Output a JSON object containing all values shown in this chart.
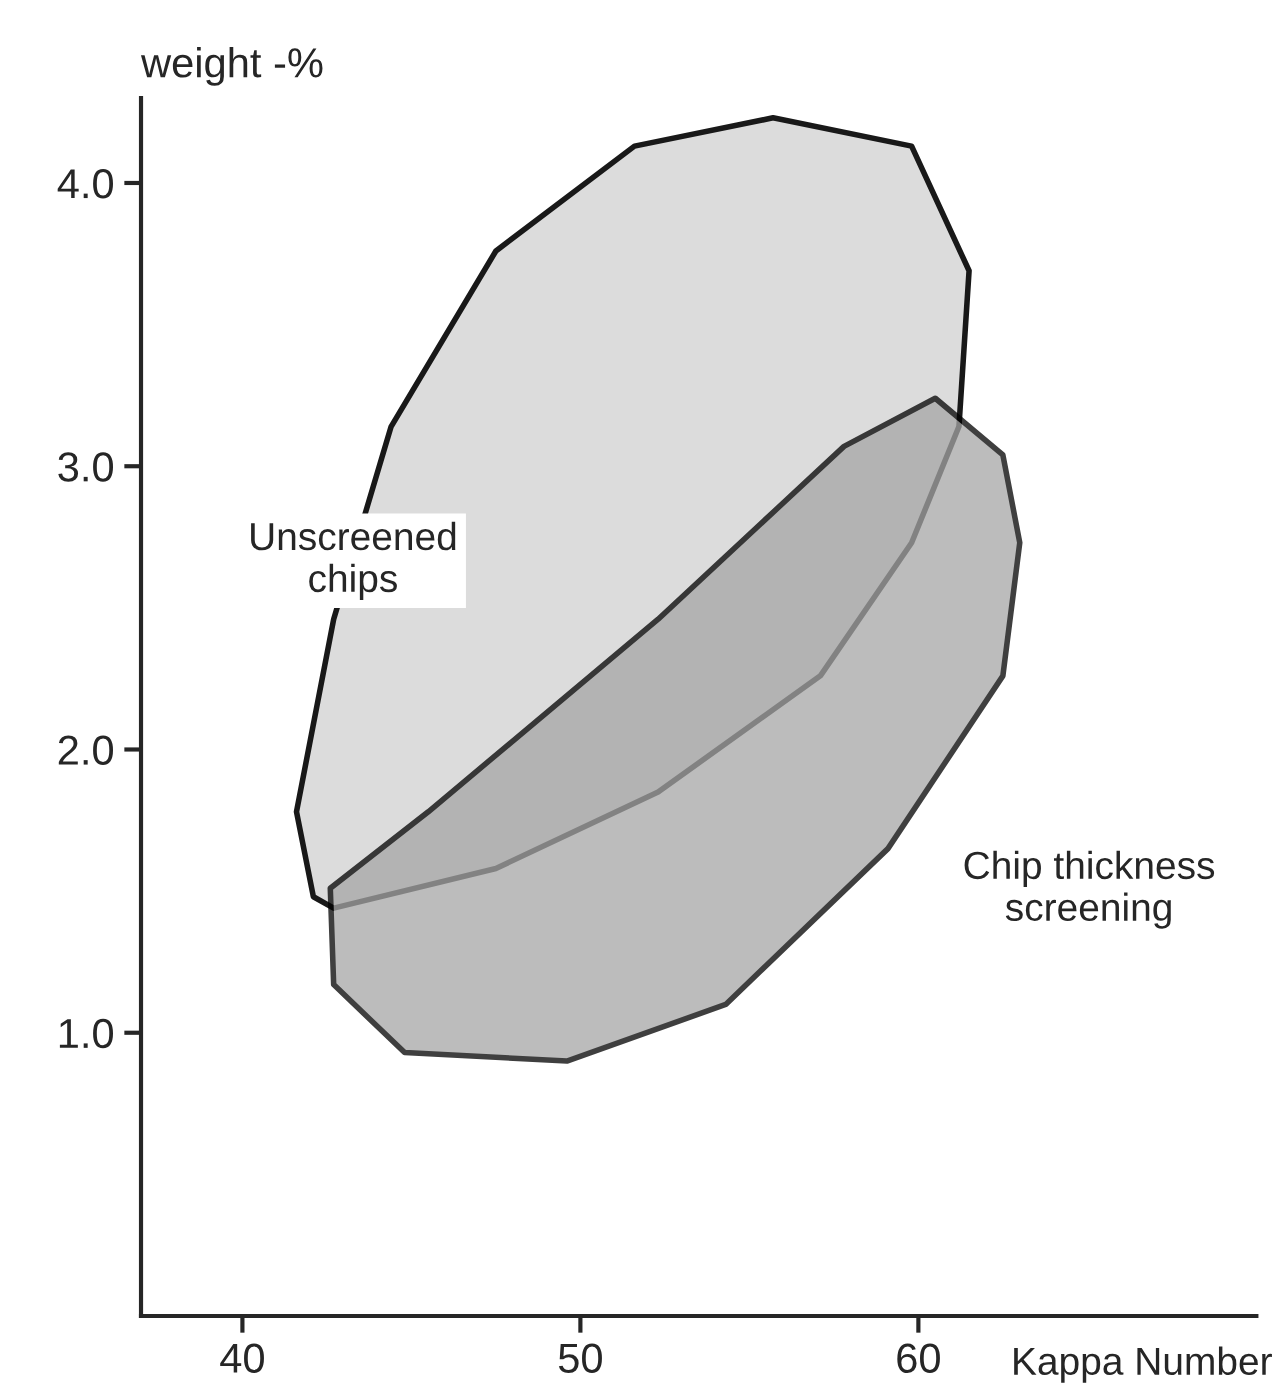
{
  "chart_data": {
    "type": "area",
    "xlabel": "Kappa Number",
    "ylabel": "weight -%",
    "xlim": [
      37,
      70
    ],
    "xticks": [
      40,
      50,
      60
    ],
    "ylim": [
      0,
      4.3
    ],
    "yticks": [
      {
        "value": 1,
        "label": "1.0"
      },
      {
        "value": 2,
        "label": "2.0"
      },
      {
        "value": 3,
        "label": "3.0"
      },
      {
        "value": 4,
        "label": "4.0"
      }
    ],
    "grid": false,
    "legend": false,
    "series": [
      {
        "name": "Unscreened\nchips",
        "color": "#d9d9d9",
        "x": [
          42.1,
          41.6,
          42.7,
          44.4,
          47.5,
          51.6,
          55.7,
          59.8,
          61.5,
          61.2,
          59.8,
          57.1,
          52.3,
          47.5,
          42.7
        ],
        "values": [
          1.48,
          1.78,
          2.46,
          3.14,
          3.76,
          4.13,
          4.23,
          4.13,
          3.69,
          3.14,
          2.73,
          2.26,
          1.85,
          1.58,
          1.44
        ]
      },
      {
        "name": "Chip thickness\nscreening",
        "color": "#a6a6a6",
        "x": [
          60.5,
          62.5,
          63.0,
          62.5,
          59.1,
          54.3,
          49.6,
          44.8,
          42.7,
          42.6,
          45.5,
          52.3,
          57.8
        ],
        "values": [
          3.24,
          3.04,
          2.73,
          2.26,
          1.65,
          1.1,
          0.9,
          0.93,
          1.17,
          1.51,
          1.78,
          2.46,
          3.07
        ]
      }
    ]
  }
}
